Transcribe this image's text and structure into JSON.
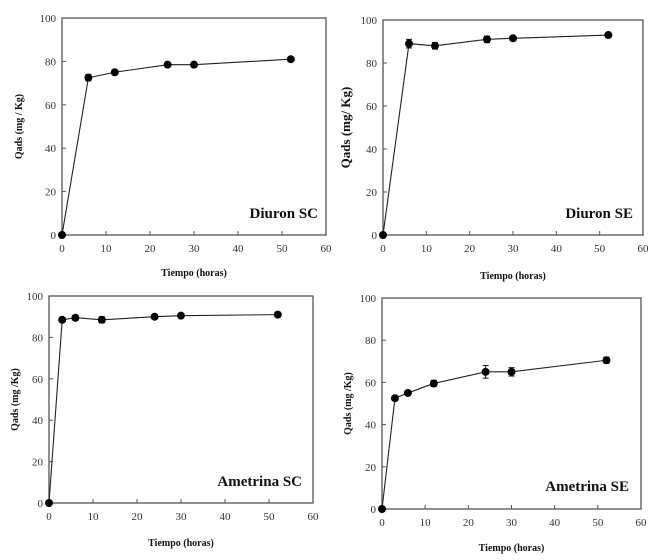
{
  "figure": {
    "panel_count": 4
  },
  "chart_data": [
    {
      "type": "line",
      "title": "",
      "annotation": "Diuron SC",
      "xlabel": "Tiempo (horas)",
      "ylabel": "Qads (mg / Kg)",
      "xlim": [
        0,
        60
      ],
      "ylim": [
        0,
        100
      ],
      "xticks": [
        0,
        10,
        20,
        30,
        40,
        50,
        60
      ],
      "yticks": [
        0,
        20,
        40,
        60,
        80,
        100
      ],
      "grid": false,
      "legend": "none",
      "series": [
        {
          "name": "Diuron SC",
          "x": [
            0,
            6,
            12,
            24,
            30,
            52
          ],
          "y": [
            0,
            72.5,
            75,
            78.5,
            78.5,
            81
          ],
          "error": [
            0,
            1.5,
            1,
            1,
            1,
            1
          ]
        }
      ]
    },
    {
      "type": "line",
      "title": "",
      "annotation": "Diuron SE",
      "xlabel": "Tiempo (horas)",
      "ylabel": "Qads (mg/ Kg)",
      "xlim": [
        0,
        60
      ],
      "ylim": [
        0,
        100
      ],
      "xticks": [
        0,
        10,
        20,
        30,
        40,
        50,
        60
      ],
      "yticks": [
        0,
        20,
        40,
        60,
        80,
        100
      ],
      "grid": false,
      "legend": "none",
      "series": [
        {
          "name": "Diuron SE",
          "x": [
            0,
            6,
            12,
            24,
            30,
            52
          ],
          "y": [
            0,
            89,
            88,
            91,
            91.5,
            93
          ],
          "error": [
            0,
            2,
            1.5,
            1.5,
            1,
            1
          ]
        }
      ]
    },
    {
      "type": "line",
      "title": "",
      "annotation": "Ametrina SC",
      "xlabel": "Tiempo (horas)",
      "ylabel": "Qads (mg /Kg)",
      "xlim": [
        0,
        60
      ],
      "ylim": [
        0,
        100
      ],
      "xticks": [
        0,
        10,
        20,
        30,
        40,
        50,
        60
      ],
      "yticks": [
        0,
        20,
        40,
        60,
        80,
        100
      ],
      "grid": false,
      "legend": "none",
      "series": [
        {
          "name": "Ametrina SC",
          "x": [
            0,
            3,
            6,
            12,
            24,
            30,
            52
          ],
          "y": [
            0,
            88.5,
            89.5,
            88.5,
            90,
            90.5,
            91
          ],
          "error": [
            0,
            1,
            1,
            1.5,
            1,
            1,
            1
          ]
        }
      ]
    },
    {
      "type": "line",
      "title": "",
      "annotation": "Ametrina SE",
      "xlabel": "Tiempo (horas)",
      "ylabel": "Qads (mg /Kg)",
      "xlim": [
        0,
        60
      ],
      "ylim": [
        0,
        100
      ],
      "xticks": [
        0,
        10,
        20,
        30,
        40,
        50,
        60
      ],
      "yticks": [
        0,
        20,
        40,
        60,
        80,
        100
      ],
      "grid": false,
      "legend": "none",
      "series": [
        {
          "name": "Ametrina SE",
          "x": [
            0,
            3,
            6,
            12,
            24,
            30,
            52
          ],
          "y": [
            0,
            52.5,
            55,
            59.5,
            65,
            65,
            70.5
          ],
          "error": [
            0,
            1,
            1,
            1.5,
            3,
            2,
            1.5
          ]
        }
      ]
    }
  ]
}
